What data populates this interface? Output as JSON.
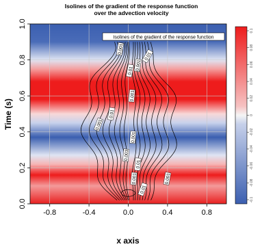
{
  "chart_data": {
    "type": "heatmap",
    "title": "Isolines of the gradient of the response function",
    "subtitle": "over the advection velocity",
    "xlabel": "x axis",
    "ylabel": "Time (s)",
    "xlim": [
      -1.0,
      1.0
    ],
    "ylim": [
      0.0,
      1.0
    ],
    "x_ticks": [
      -0.8,
      -0.4,
      0.0,
      0.4,
      0.8
    ],
    "y_ticks": [
      0.0,
      0.2,
      0.4,
      0.6,
      0.8,
      1.0
    ],
    "x_tick_labels": [
      "-0.8",
      "-0.4",
      "0.0",
      "0.4",
      "0.8"
    ],
    "y_tick_labels": [
      "0.0",
      "0.2",
      "0.4",
      "0.6",
      "0.8",
      "1.0"
    ],
    "grid": true,
    "background_field": {
      "description": "advection velocity varying with time only (horizontal bands)",
      "bands": [
        {
          "t_center": 0.05,
          "sign": "positive"
        },
        {
          "t_center": 0.18,
          "sign": "positive"
        },
        {
          "t_center": 0.37,
          "sign": "negative"
        },
        {
          "t_center": 0.6,
          "sign": "positive"
        },
        {
          "t_center": 0.9,
          "sign": "negative"
        }
      ]
    },
    "legend": {
      "placement": "top-right",
      "entries": [
        "Isolines of the gradient of the response function"
      ]
    },
    "contour_labels": [
      "0.001",
      "0.01",
      "0.001",
      "0.01",
      "0.001",
      "0.01",
      "0.001",
      "0.001",
      "0.003",
      "0.01",
      "0.001",
      "0.001",
      "0.01"
    ],
    "colorbar": {
      "ticks": [
        "0.1",
        "0.08",
        "0.06",
        "0.04",
        "0.02",
        "0",
        "-0.02",
        "-0.04",
        "-0.06",
        "-0.08",
        "-0.1"
      ],
      "top_color": "#ee1c1c",
      "mid_color": "#f5f5f5",
      "bottom_color": "#3b5fb0"
    }
  }
}
